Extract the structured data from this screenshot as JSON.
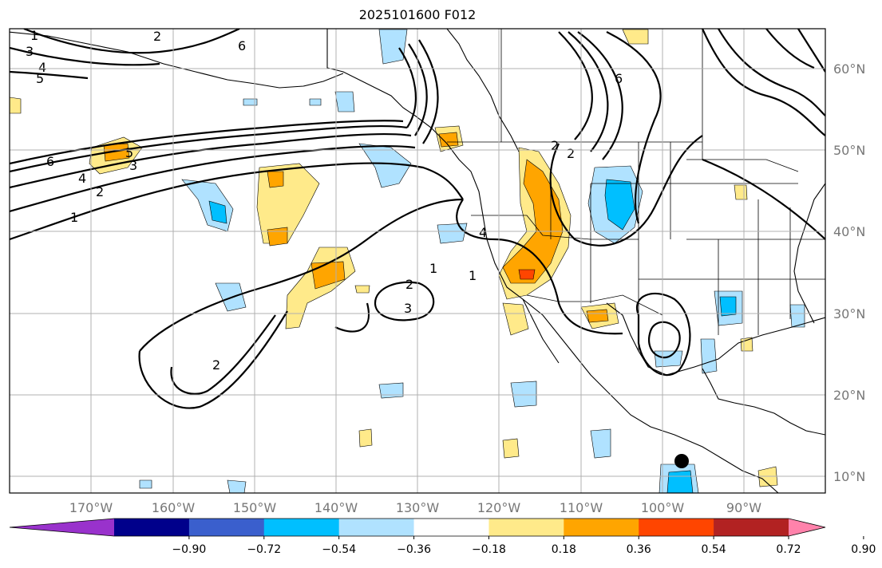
{
  "title": "2025101600 F012",
  "lat_labels": [
    "60°N",
    "50°N",
    "40°N",
    "30°N",
    "20°N",
    "10°N"
  ],
  "lon_labels": [
    "170°W",
    "160°W",
    "150°W",
    "140°W",
    "130°W",
    "120°W",
    "110°W",
    "100°W",
    "90°W"
  ],
  "colorbar": {
    "tick_labels": [
      "−0.90",
      "−0.72",
      "−0.54",
      "−0.36",
      "−0.18",
      "0.18",
      "0.36",
      "0.54",
      "0.72",
      "0.90"
    ],
    "colors": [
      "#9932cc",
      "#00008b",
      "#3a5fcd",
      "#00bfff",
      "#b0e2ff",
      "#ffffff",
      "#ffea8a",
      "#ffa500",
      "#ff4500",
      "#b22222",
      "#ff82ab"
    ]
  },
  "contour_labels": [
    "6",
    "5",
    "4",
    "3",
    "2",
    "1",
    "6",
    "5",
    "4",
    "3",
    "2",
    "1",
    "2",
    "3",
    "1",
    "1",
    "4",
    "2",
    "2",
    "2",
    "6"
  ],
  "colors": {
    "blue_light": "#b0e2ff",
    "blue_mid": "#00bfff",
    "yellow": "#ffea8a",
    "orange": "#ffa500",
    "red": "#ff4500"
  }
}
